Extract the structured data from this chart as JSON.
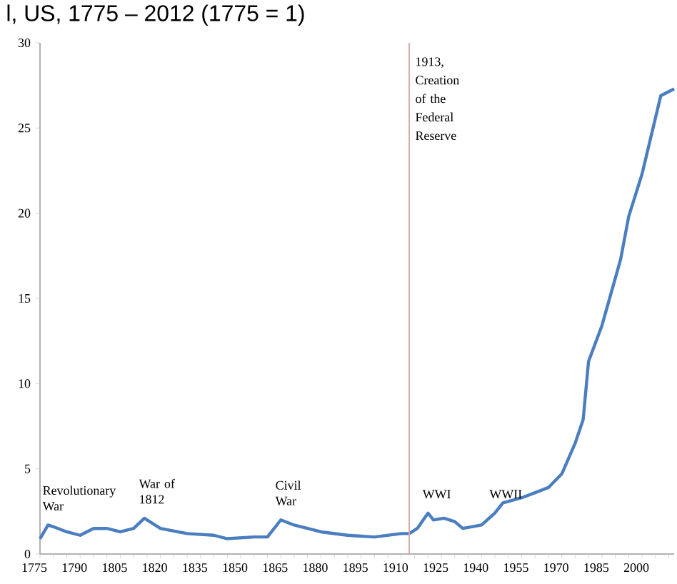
{
  "chart_data": {
    "type": "line",
    "title": "l, US, 1775 – 2012 (1775 = 1)",
    "series": [
      {
        "color": "#4a7ebf",
        "x": [
          1775,
          1778,
          1780,
          1785,
          1790,
          1795,
          1800,
          1805,
          1810,
          1814,
          1820,
          1830,
          1840,
          1845,
          1855,
          1860,
          1865,
          1870,
          1880,
          1890,
          1900,
          1910,
          1913,
          1916,
          1920,
          1922,
          1926,
          1930,
          1933,
          1940,
          1945,
          1948,
          1955,
          1960,
          1965,
          1970,
          1975,
          1978,
          1980,
          1985,
          1992,
          1995,
          2000,
          2007,
          2012
        ],
        "values": [
          0.9,
          1.7,
          1.6,
          1.3,
          1.1,
          1.5,
          1.5,
          1.3,
          1.5,
          2.1,
          1.5,
          1.2,
          1.1,
          0.9,
          1.0,
          1.0,
          2.0,
          1.7,
          1.3,
          1.1,
          1.0,
          1.2,
          1.2,
          1.5,
          2.4,
          2.0,
          2.1,
          1.9,
          1.5,
          1.7,
          2.4,
          3.0,
          3.3,
          3.6,
          3.9,
          4.7,
          6.5,
          7.9,
          11.3,
          13.4,
          17.3,
          19.8,
          22.3,
          26.9,
          27.3
        ]
      }
    ],
    "xlim": [
      1775,
      2012
    ],
    "ylim": [
      0,
      30
    ],
    "xticks": [
      1775,
      {
        "value": 1780,
        "label": null
      },
      {
        "value": 1785,
        "label": null
      },
      1790,
      {
        "value": 1795,
        "label": null
      },
      {
        "value": 1800,
        "label": null
      },
      1805,
      {
        "value": 1810,
        "label": null
      },
      {
        "value": 1815,
        "label": null
      },
      1820,
      {
        "value": 1825,
        "label": null
      },
      {
        "value": 1830,
        "label": null
      },
      1835,
      {
        "value": 1840,
        "label": null
      },
      {
        "value": 1845,
        "label": null
      },
      1850,
      {
        "value": 1855,
        "label": null
      },
      {
        "value": 1860,
        "label": null
      },
      1865,
      {
        "value": 1870,
        "label": null
      },
      {
        "value": 1875,
        "label": null
      },
      1880,
      {
        "value": 1885,
        "label": null
      },
      {
        "value": 1890,
        "label": null
      },
      1895,
      {
        "value": 1900,
        "label": null
      },
      {
        "value": 1905,
        "label": null
      },
      1910,
      {
        "value": 1915,
        "label": null
      },
      {
        "value": 1920,
        "label": null
      },
      1925,
      {
        "value": 1930,
        "label": null
      },
      {
        "value": 1935,
        "label": null
      },
      1940,
      {
        "value": 1945,
        "label": null
      },
      {
        "value": 1950,
        "label": null
      },
      1955,
      {
        "value": 1960,
        "label": null
      },
      {
        "value": 1965,
        "label": null
      },
      1970,
      {
        "value": 1975,
        "label": null
      },
      {
        "value": 1980,
        "label": null
      },
      1985,
      {
        "value": 1990,
        "label": null
      },
      {
        "value": 1995,
        "label": null
      },
      2000,
      {
        "value": 2005,
        "label": null
      },
      {
        "value": 2010,
        "label": null
      }
    ],
    "yticks": [
      0,
      5,
      10,
      15,
      20,
      25,
      30
    ],
    "ref_lines": [
      {
        "axis": "x",
        "value": 1913,
        "label": "1913, Creation of the Federal Reserve",
        "color": "#d9a9a9"
      }
    ],
    "annotations": [
      {
        "text": "Revolutionary War",
        "x": 1778,
        "y": 1.7
      },
      {
        "text": "War of 1812",
        "x": 1814,
        "y": 2.1
      },
      {
        "text": "Civil War",
        "x": 1865,
        "y": 2.0
      },
      {
        "text": "WWI",
        "x": 1920,
        "y": 2.4
      },
      {
        "text": "WWII",
        "x": 1945,
        "y": 2.4
      }
    ],
    "marker": "none",
    "line_style": "solid"
  }
}
